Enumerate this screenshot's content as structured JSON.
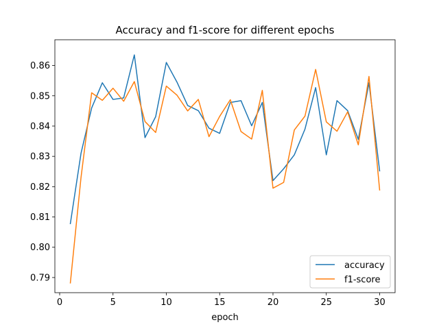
{
  "chart_data": {
    "type": "line",
    "title": "Accuracy and f1-score for different epochs",
    "xlabel": "epoch",
    "ylabel": "",
    "xlim": [
      -0.45,
      31.45
    ],
    "ylim": [
      0.785,
      0.8685
    ],
    "xticks": [
      0,
      5,
      10,
      15,
      20,
      25,
      30
    ],
    "yticks": [
      0.79,
      0.8,
      0.81,
      0.82,
      0.83,
      0.84,
      0.85,
      0.86
    ],
    "ytick_labels": [
      "0.79",
      "0.80",
      "0.81",
      "0.82",
      "0.83",
      "0.84",
      "0.85",
      "0.86"
    ],
    "legend_position": "lower-right",
    "grid": false,
    "x": [
      1,
      2,
      3,
      4,
      5,
      6,
      7,
      8,
      9,
      10,
      11,
      12,
      13,
      14,
      15,
      16,
      17,
      18,
      19,
      20,
      21,
      22,
      23,
      24,
      25,
      26,
      27,
      28,
      29,
      30
    ],
    "series": [
      {
        "name": "accuracy",
        "color": "#1f77b4",
        "values": [
          0.8078,
          0.831,
          0.846,
          0.8543,
          0.8488,
          0.8493,
          0.8635,
          0.8362,
          0.8431,
          0.861,
          0.8545,
          0.8468,
          0.8451,
          0.8393,
          0.8376,
          0.8478,
          0.8484,
          0.8401,
          0.8478,
          0.822,
          0.8259,
          0.8305,
          0.839,
          0.8527,
          0.8305,
          0.8484,
          0.8451,
          0.8356,
          0.8543,
          0.8252
        ]
      },
      {
        "name": "f1-score",
        "color": "#ff7f0e",
        "values": [
          0.7882,
          0.823,
          0.851,
          0.8485,
          0.8525,
          0.8482,
          0.8547,
          0.8415,
          0.8379,
          0.8532,
          0.8502,
          0.845,
          0.8488,
          0.8365,
          0.8432,
          0.8487,
          0.8382,
          0.8357,
          0.8518,
          0.8195,
          0.8214,
          0.8387,
          0.8433,
          0.8587,
          0.8414,
          0.8383,
          0.8447,
          0.8338,
          0.8564,
          0.8189
        ]
      }
    ]
  }
}
